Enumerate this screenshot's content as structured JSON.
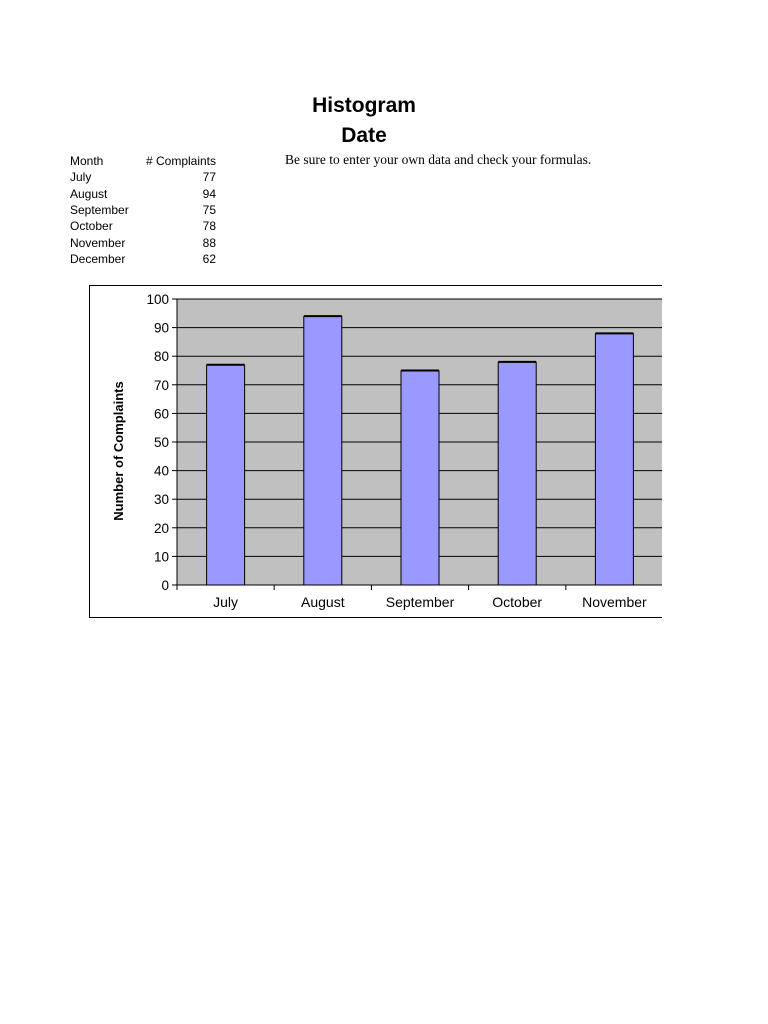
{
  "header": {
    "title_line1": "Histogram",
    "title_line2": "Date",
    "note": "Be sure to enter your own data and check your formulas."
  },
  "table": {
    "headers": [
      "Month",
      "# Complaints"
    ],
    "rows": [
      {
        "month": "July",
        "value": "77"
      },
      {
        "month": "August",
        "value": "94"
      },
      {
        "month": "September",
        "value": "75"
      },
      {
        "month": "October",
        "value": "78"
      },
      {
        "month": "November",
        "value": "88"
      },
      {
        "month": "December",
        "value": "62"
      }
    ]
  },
  "chart_data": {
    "type": "bar",
    "categories": [
      "July",
      "August",
      "September",
      "October",
      "November"
    ],
    "values": [
      77,
      94,
      75,
      78,
      88
    ],
    "title": "",
    "xlabel": "",
    "ylabel": "Number of Complaints",
    "ylim": [
      0,
      100
    ],
    "yticks": [
      0,
      10,
      20,
      30,
      40,
      50,
      60,
      70,
      80,
      90,
      100
    ],
    "grid": true,
    "legend": "none",
    "colors": {
      "bar_fill": "#9999ff",
      "bar_stroke": "#000000",
      "plot_background": "#c0c0c0",
      "gridline": "#000000"
    }
  }
}
